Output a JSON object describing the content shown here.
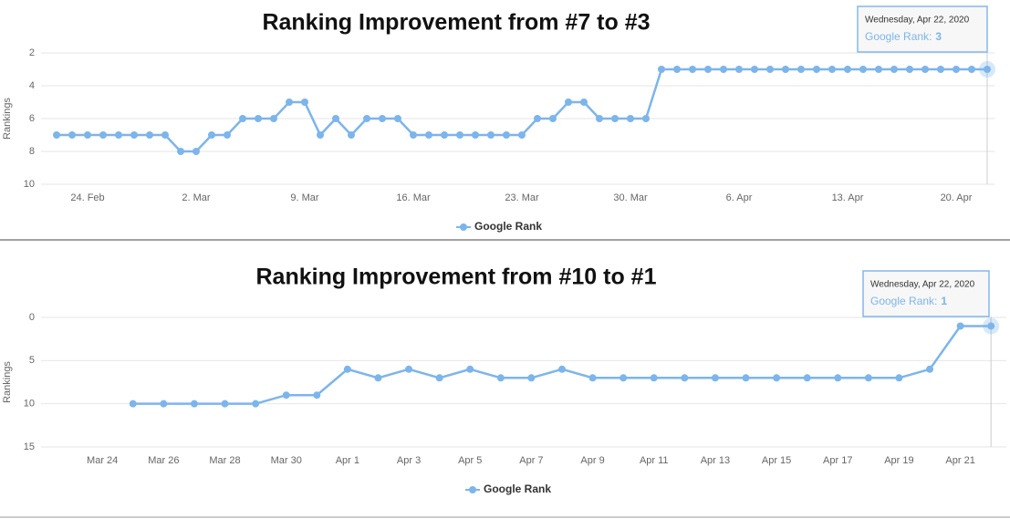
{
  "chart_data": [
    {
      "type": "line",
      "title": "Ranking Improvement from #7 to #3",
      "y_label": "Rankings",
      "categories": [
        null,
        null,
        "24. Feb",
        null,
        null,
        null,
        null,
        null,
        null,
        "2. Mar",
        null,
        null,
        null,
        null,
        null,
        null,
        "9. Mar",
        null,
        null,
        null,
        null,
        null,
        null,
        "16. Mar",
        null,
        null,
        null,
        null,
        null,
        null,
        "23. Mar",
        null,
        null,
        null,
        null,
        null,
        null,
        "30. Mar",
        null,
        null,
        null,
        null,
        null,
        null,
        "6. Apr",
        null,
        null,
        null,
        null,
        null,
        null,
        "13. Apr",
        null,
        null,
        null,
        null,
        null,
        null,
        "20. Apr",
        null,
        null
      ],
      "series": [
        {
          "name": "Google Rank",
          "color": "#7cb5ec",
          "values": [
            7,
            7,
            7,
            7,
            7,
            7,
            7,
            7,
            8,
            8,
            7,
            7,
            6,
            6,
            6,
            5,
            5,
            7,
            6,
            7,
            6,
            6,
            6,
            7,
            7,
            7,
            7,
            7,
            7,
            7,
            7,
            6,
            6,
            5,
            5,
            6,
            6,
            6,
            6,
            3,
            3,
            3,
            3,
            3,
            3,
            3,
            3,
            3,
            3,
            3,
            3,
            3,
            3,
            3,
            3,
            3,
            3,
            3,
            3,
            3,
            3
          ]
        }
      ],
      "ylim": [
        2,
        10
      ],
      "yticks": [
        2,
        4,
        6,
        8,
        10
      ],
      "y_reversed": true,
      "grid": true,
      "legend": "bottom",
      "tooltip": {
        "title": "Wednesday, Apr 22, 2020",
        "label": "Google Rank:"
      }
    },
    {
      "type": "line",
      "title": "Ranking Improvement from #10 to #1",
      "y_label": "Rankings",
      "categories": [
        null,
        "Mar 24",
        null,
        "Mar 26",
        null,
        "Mar 28",
        null,
        "Mar 30",
        null,
        "Apr 1",
        null,
        "Apr 3",
        null,
        "Apr 5",
        null,
        "Apr 7",
        null,
        "Apr 9",
        null,
        "Apr 11",
        null,
        "Apr 13",
        null,
        "Apr 15",
        null,
        "Apr 17",
        null,
        "Apr 19",
        null,
        "Apr 21",
        null
      ],
      "series": [
        {
          "name": "Google Rank",
          "color": "#7cb5ec",
          "values": [
            null,
            null,
            10,
            10,
            10,
            10,
            10,
            9,
            9,
            6,
            7,
            6,
            7,
            6,
            7,
            7,
            6,
            7,
            7,
            7,
            7,
            7,
            7,
            7,
            7,
            7,
            7,
            7,
            6,
            1,
            1
          ]
        }
      ],
      "ylim": [
        0,
        15
      ],
      "yticks": [
        0,
        5,
        10,
        15
      ],
      "y_reversed": true,
      "grid": true,
      "legend": "bottom",
      "tooltip": {
        "title": "Wednesday, Apr 22, 2020",
        "label": "Google Rank:"
      }
    }
  ]
}
